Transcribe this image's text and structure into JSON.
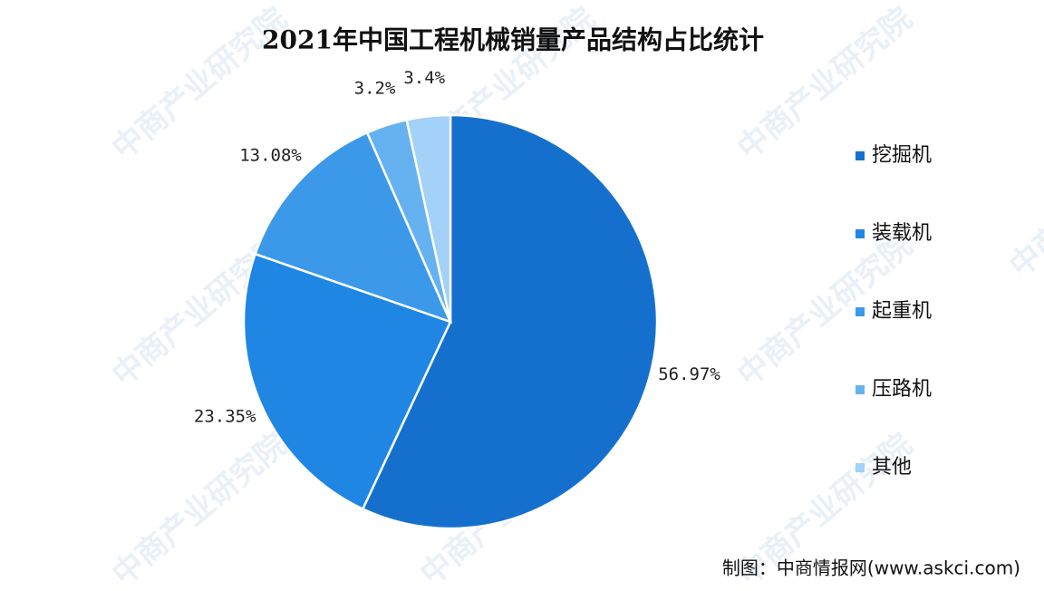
{
  "chart_data": {
    "type": "pie",
    "title": "2021年中国工程机械销量产品结构占比统计",
    "categories": [
      "挖掘机",
      "装载机",
      "起重机",
      "压路机",
      "其他"
    ],
    "values": [
      56.97,
      23.35,
      13.08,
      3.2,
      3.4
    ],
    "value_labels": [
      "56.97%",
      "23.35%",
      "13.08%",
      "3.2%",
      "3.4%"
    ],
    "colors": [
      "#1570cd",
      "#1f86e3",
      "#3c99ea",
      "#66b2f0",
      "#a3d1f7"
    ],
    "legend": "right",
    "source": "制图：中商情报网(www.askci.com)",
    "watermark": "中商产业研究院"
  }
}
